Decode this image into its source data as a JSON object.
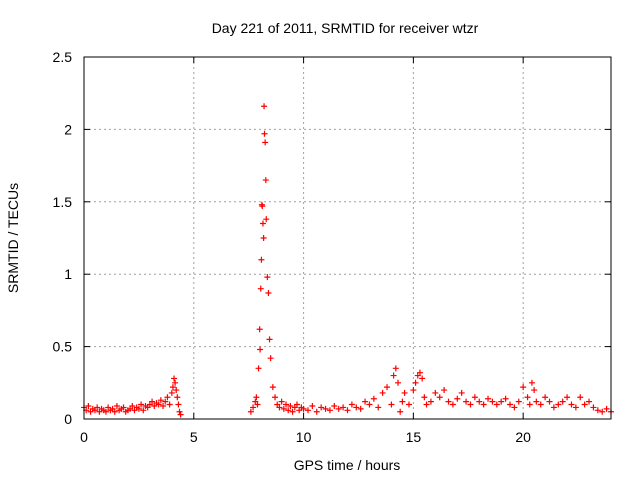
{
  "chart_data": {
    "type": "scatter",
    "title": "Day 221 of 2011, SRMTID for receiver wtzr",
    "xlabel": "GPS time / hours",
    "ylabel": "SRMTID / TECUs",
    "xlim": [
      0,
      24
    ],
    "ylim": [
      0,
      2.5
    ],
    "xticks": [
      0,
      5,
      10,
      15,
      20
    ],
    "xtick_labels": [
      "0",
      "5",
      "10",
      "15",
      "20"
    ],
    "yticks": [
      0,
      0.5,
      1,
      1.5,
      2,
      2.5
    ],
    "ytick_labels": [
      "0",
      "0.5",
      "1",
      "1.5",
      "2",
      "2.5"
    ],
    "grid": true,
    "marker": "+",
    "series": [
      {
        "name": "SRMTID",
        "color": "#ff0000",
        "x": [
          0.0,
          0.1,
          0.2,
          0.3,
          0.4,
          0.5,
          0.6,
          0.7,
          0.8,
          0.9,
          1.0,
          1.1,
          1.2,
          1.3,
          1.4,
          1.5,
          1.6,
          1.7,
          1.8,
          1.9,
          2.0,
          2.1,
          2.2,
          2.3,
          2.4,
          2.5,
          2.6,
          2.7,
          2.8,
          2.9,
          3.0,
          3.1,
          3.2,
          3.3,
          3.4,
          3.5,
          3.6,
          3.7,
          3.8,
          3.9,
          4.0,
          4.05,
          4.1,
          4.15,
          4.2,
          4.25,
          4.3,
          4.35,
          4.4,
          7.6,
          7.7,
          7.8,
          7.85,
          7.9,
          7.95,
          8.0,
          8.02,
          8.05,
          8.08,
          8.1,
          8.12,
          8.15,
          8.18,
          8.2,
          8.22,
          8.25,
          8.28,
          8.3,
          8.35,
          8.4,
          8.45,
          8.5,
          8.6,
          8.7,
          8.8,
          8.9,
          9.0,
          9.1,
          9.2,
          9.3,
          9.4,
          9.5,
          9.6,
          9.7,
          9.8,
          9.9,
          10.0,
          10.2,
          10.4,
          10.6,
          10.8,
          11.0,
          11.2,
          11.4,
          11.6,
          11.8,
          12.0,
          12.2,
          12.4,
          12.6,
          12.8,
          13.0,
          13.2,
          13.4,
          13.6,
          13.8,
          14.0,
          14.1,
          14.2,
          14.3,
          14.4,
          14.5,
          14.6,
          14.8,
          15.0,
          15.1,
          15.2,
          15.3,
          15.4,
          15.5,
          15.6,
          15.8,
          16.0,
          16.2,
          16.4,
          16.6,
          16.8,
          17.0,
          17.2,
          17.4,
          17.6,
          17.8,
          18.0,
          18.2,
          18.4,
          18.6,
          18.8,
          19.0,
          19.2,
          19.4,
          19.6,
          19.8,
          20.0,
          20.2,
          20.3,
          20.4,
          20.5,
          20.6,
          20.8,
          21.0,
          21.2,
          21.4,
          21.6,
          21.8,
          22.0,
          22.2,
          22.4,
          22.6,
          22.8,
          23.0,
          23.2,
          23.4,
          23.6,
          23.8,
          24.0
        ],
        "y": [
          0.08,
          0.06,
          0.09,
          0.05,
          0.07,
          0.06,
          0.08,
          0.05,
          0.07,
          0.06,
          0.05,
          0.08,
          0.06,
          0.07,
          0.05,
          0.09,
          0.06,
          0.07,
          0.08,
          0.05,
          0.06,
          0.07,
          0.09,
          0.06,
          0.08,
          0.07,
          0.1,
          0.06,
          0.09,
          0.08,
          0.1,
          0.12,
          0.09,
          0.11,
          0.1,
          0.13,
          0.09,
          0.12,
          0.15,
          0.1,
          0.18,
          0.22,
          0.28,
          0.25,
          0.2,
          0.15,
          0.1,
          0.05,
          0.03,
          0.05,
          0.08,
          0.12,
          0.15,
          0.1,
          0.35,
          0.62,
          0.48,
          0.9,
          1.1,
          1.48,
          1.47,
          1.35,
          1.25,
          2.16,
          1.97,
          1.91,
          1.65,
          1.38,
          0.98,
          0.87,
          0.55,
          0.42,
          0.22,
          0.15,
          0.1,
          0.08,
          0.12,
          0.07,
          0.1,
          0.06,
          0.09,
          0.05,
          0.08,
          0.1,
          0.06,
          0.08,
          0.07,
          0.06,
          0.09,
          0.05,
          0.08,
          0.07,
          0.06,
          0.09,
          0.07,
          0.08,
          0.06,
          0.1,
          0.08,
          0.07,
          0.12,
          0.1,
          0.14,
          0.08,
          0.18,
          0.22,
          0.1,
          0.3,
          0.35,
          0.25,
          0.05,
          0.12,
          0.18,
          0.1,
          0.2,
          0.25,
          0.3,
          0.32,
          0.28,
          0.15,
          0.1,
          0.12,
          0.18,
          0.15,
          0.2,
          0.12,
          0.1,
          0.14,
          0.18,
          0.12,
          0.1,
          0.15,
          0.12,
          0.1,
          0.14,
          0.12,
          0.1,
          0.12,
          0.14,
          0.1,
          0.08,
          0.12,
          0.22,
          0.15,
          0.1,
          0.25,
          0.2,
          0.12,
          0.1,
          0.15,
          0.12,
          0.08,
          0.1,
          0.12,
          0.15,
          0.1,
          0.08,
          0.15,
          0.1,
          0.12,
          0.08,
          0.06,
          0.05,
          0.07,
          0.05
        ]
      }
    ]
  }
}
